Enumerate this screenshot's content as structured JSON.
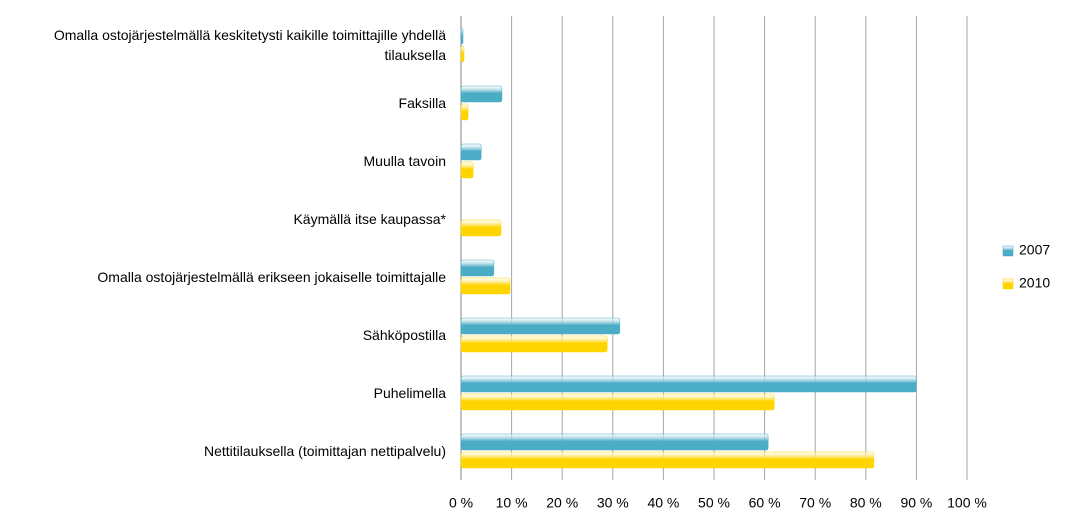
{
  "chart_data": {
    "type": "barh",
    "categories": [
      "Omalla ostojärjestelmällä keskitetysti kaikille toimittajille yhdellä tilauksella",
      "Faksilla",
      "Muulla tavoin",
      "Käymällä itse kaupassa*",
      "Omalla ostojärjestelmällä erikseen jokaiselle toimittajalle",
      "Sähköpostilla",
      "Puhelimella",
      "Nettitilauksella (toimittajan nettipalvelu)"
    ],
    "series": [
      {
        "name": "2007",
        "color": "#4bacc6",
        "values": [
          0.4,
          8.1,
          4,
          null,
          6.5,
          31.4,
          90,
          60.7
        ]
      },
      {
        "name": "2010",
        "color": "#ffd500",
        "values": [
          0.6,
          1.4,
          2.4,
          7.9,
          9.7,
          28.9,
          61.9,
          81.6
        ]
      }
    ],
    "xlim": [
      0,
      100
    ],
    "xticks": [
      {
        "value": 0,
        "label": "0 %"
      },
      {
        "value": 10,
        "label": "10 %"
      },
      {
        "value": 20,
        "label": "20 %"
      },
      {
        "value": 30,
        "label": "30 %"
      },
      {
        "value": 40,
        "label": "40 %"
      },
      {
        "value": 50,
        "label": "50 %"
      },
      {
        "value": 60,
        "label": "60 %"
      },
      {
        "value": 70,
        "label": "70 %"
      },
      {
        "value": 80,
        "label": "80 %"
      },
      {
        "value": 90,
        "label": "90 %"
      },
      {
        "value": 100,
        "label": "100 %"
      }
    ],
    "grid": true,
    "legend": "right"
  }
}
